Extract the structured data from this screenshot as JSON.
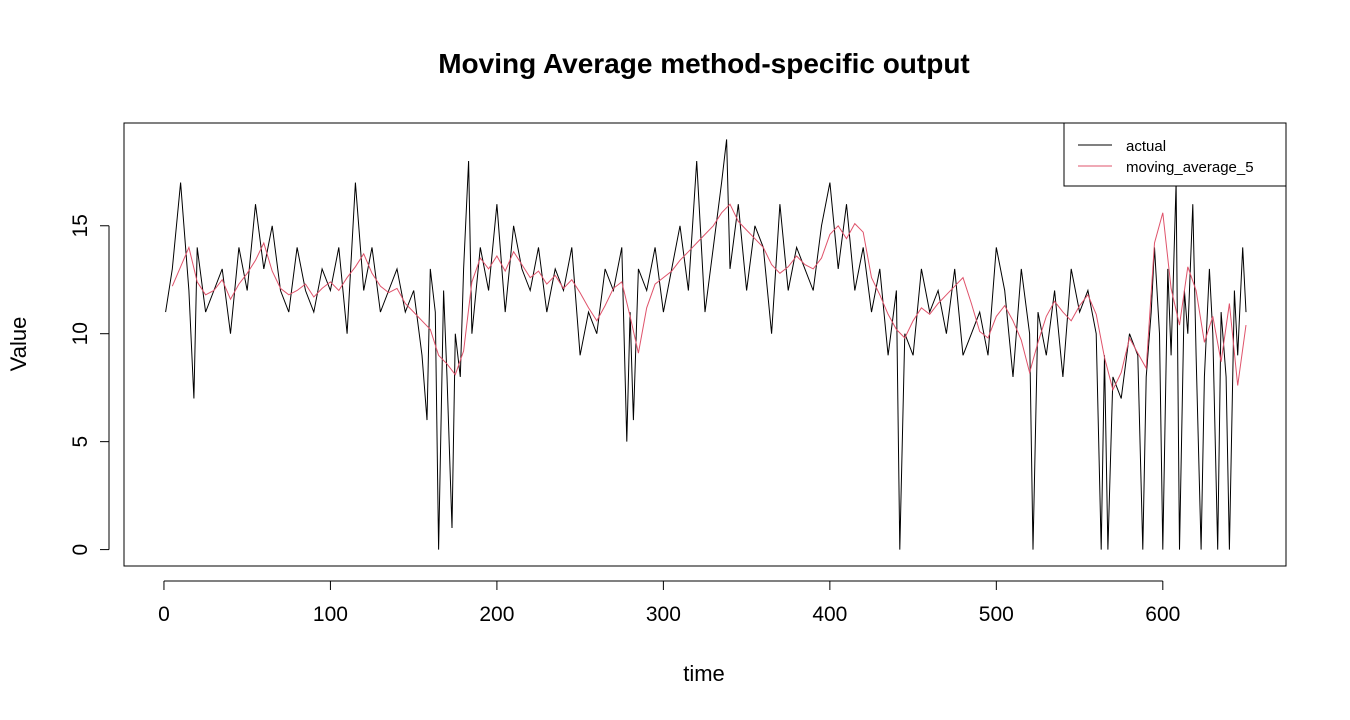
{
  "chart_data": {
    "type": "line",
    "title": "Moving Average method-specific output",
    "xlabel": "time",
    "ylabel": "Value",
    "xlim": [
      0,
      650
    ],
    "ylim": [
      0,
      19
    ],
    "x_ticks": [
      0,
      100,
      200,
      300,
      400,
      500,
      600
    ],
    "y_ticks": [
      0,
      5,
      10,
      15
    ],
    "legend_position": "top-right",
    "grid": false,
    "series": [
      {
        "name": "actual",
        "color": "#000000",
        "x": [
          1,
          5,
          10,
          15,
          18,
          20,
          25,
          30,
          35,
          40,
          45,
          50,
          55,
          60,
          65,
          70,
          75,
          80,
          85,
          90,
          95,
          100,
          105,
          110,
          115,
          120,
          125,
          130,
          135,
          140,
          145,
          150,
          155,
          158,
          160,
          163,
          165,
          168,
          170,
          173,
          175,
          178,
          180,
          183,
          185,
          190,
          195,
          200,
          205,
          210,
          215,
          220,
          225,
          230,
          235,
          240,
          245,
          250,
          255,
          260,
          265,
          270,
          275,
          278,
          280,
          282,
          285,
          290,
          295,
          300,
          305,
          310,
          315,
          320,
          325,
          330,
          335,
          338,
          340,
          345,
          350,
          355,
          360,
          365,
          370,
          375,
          380,
          385,
          390,
          395,
          400,
          405,
          410,
          415,
          420,
          425,
          430,
          435,
          440,
          442,
          445,
          450,
          455,
          460,
          465,
          470,
          475,
          480,
          485,
          490,
          495,
          500,
          505,
          510,
          515,
          520,
          522,
          525,
          530,
          535,
          540,
          545,
          550,
          555,
          560,
          563,
          565,
          567,
          570,
          575,
          580,
          585,
          588,
          590,
          593,
          595,
          598,
          600,
          603,
          605,
          608,
          610,
          613,
          615,
          618,
          620,
          623,
          625,
          628,
          630,
          633,
          635,
          638,
          640,
          643,
          645,
          648,
          650
        ],
        "values": [
          11,
          13,
          17,
          12,
          7,
          14,
          11,
          12,
          13,
          10,
          14,
          12,
          16,
          13,
          15,
          12,
          11,
          14,
          12,
          11,
          13,
          12,
          14,
          10,
          17,
          12,
          14,
          11,
          12,
          13,
          11,
          12,
          9,
          6,
          13,
          11,
          0,
          12,
          8,
          1,
          10,
          8,
          13,
          18,
          10,
          14,
          12,
          16,
          11,
          15,
          13,
          12,
          14,
          11,
          13,
          12,
          14,
          9,
          11,
          10,
          13,
          12,
          14,
          5,
          11,
          6,
          13,
          12,
          14,
          11,
          13,
          15,
          12,
          18,
          11,
          14,
          17,
          19,
          13,
          16,
          12,
          15,
          14,
          10,
          16,
          12,
          14,
          13,
          12,
          15,
          17,
          13,
          16,
          12,
          14,
          11,
          13,
          9,
          12,
          0,
          10,
          9,
          13,
          11,
          12,
          10,
          13,
          9,
          10,
          11,
          9,
          14,
          12,
          8,
          13,
          10,
          0,
          11,
          9,
          12,
          8,
          13,
          11,
          12,
          10,
          0,
          9,
          0,
          8,
          7,
          10,
          9,
          0,
          8,
          11,
          14,
          10,
          0,
          13,
          9,
          17,
          0,
          12,
          10,
          16,
          9,
          0,
          8,
          13,
          10,
          0,
          11,
          8,
          0,
          12,
          9,
          14,
          11
        ]
      },
      {
        "name": "moving_average_5",
        "color": "#df536b",
        "x": [
          5,
          10,
          15,
          20,
          25,
          30,
          35,
          40,
          45,
          50,
          55,
          60,
          65,
          70,
          75,
          80,
          85,
          90,
          95,
          100,
          105,
          110,
          115,
          120,
          125,
          130,
          135,
          140,
          145,
          150,
          155,
          160,
          165,
          170,
          175,
          180,
          185,
          190,
          195,
          200,
          205,
          210,
          215,
          220,
          225,
          230,
          235,
          240,
          245,
          250,
          255,
          260,
          265,
          270,
          275,
          280,
          285,
          290,
          295,
          300,
          305,
          310,
          315,
          320,
          325,
          330,
          335,
          340,
          345,
          350,
          355,
          360,
          365,
          370,
          375,
          380,
          385,
          390,
          395,
          400,
          405,
          410,
          415,
          420,
          425,
          430,
          435,
          440,
          445,
          450,
          455,
          460,
          465,
          470,
          475,
          480,
          485,
          490,
          495,
          500,
          505,
          510,
          515,
          520,
          525,
          530,
          535,
          540,
          545,
          550,
          555,
          560,
          565,
          570,
          575,
          580,
          585,
          590,
          595,
          600,
          605,
          610,
          615,
          620,
          625,
          630,
          635,
          640,
          645,
          650
        ],
        "values": [
          12.2,
          13.1,
          14.0,
          12.4,
          11.8,
          12.0,
          12.5,
          11.6,
          12.3,
          12.8,
          13.4,
          14.2,
          12.9,
          12.1,
          11.8,
          12.0,
          12.3,
          11.7,
          12.1,
          12.4,
          12.0,
          12.6,
          13.1,
          13.7,
          12.8,
          12.2,
          11.9,
          12.1,
          11.4,
          11.0,
          10.6,
          10.2,
          9.0,
          8.6,
          8.1,
          9.2,
          12.4,
          13.5,
          13.0,
          13.6,
          12.9,
          13.8,
          13.2,
          12.6,
          12.9,
          12.3,
          12.7,
          12.1,
          12.5,
          11.9,
          11.2,
          10.6,
          11.3,
          12.1,
          12.4,
          10.8,
          9.1,
          11.2,
          12.3,
          12.6,
          12.9,
          13.4,
          13.8,
          14.2,
          14.6,
          15.0,
          15.6,
          16.0,
          15.2,
          14.8,
          14.4,
          14.0,
          13.2,
          12.8,
          13.1,
          13.6,
          13.2,
          13.0,
          13.5,
          14.6,
          15.0,
          14.4,
          15.1,
          14.7,
          12.6,
          11.8,
          10.9,
          10.2,
          9.8,
          10.6,
          11.2,
          10.9,
          11.4,
          11.8,
          12.2,
          12.6,
          11.4,
          10.1,
          9.8,
          10.8,
          11.3,
          10.6,
          9.7,
          8.2,
          9.6,
          10.8,
          11.5,
          11.0,
          10.6,
          11.3,
          11.8,
          10.9,
          8.9,
          7.4,
          8.2,
          9.8,
          9.1,
          8.4,
          14.2,
          15.6,
          12.1,
          10.4,
          13.1,
          12.0,
          9.6,
          10.8,
          8.7,
          11.4,
          7.6,
          10.4
        ]
      }
    ]
  }
}
